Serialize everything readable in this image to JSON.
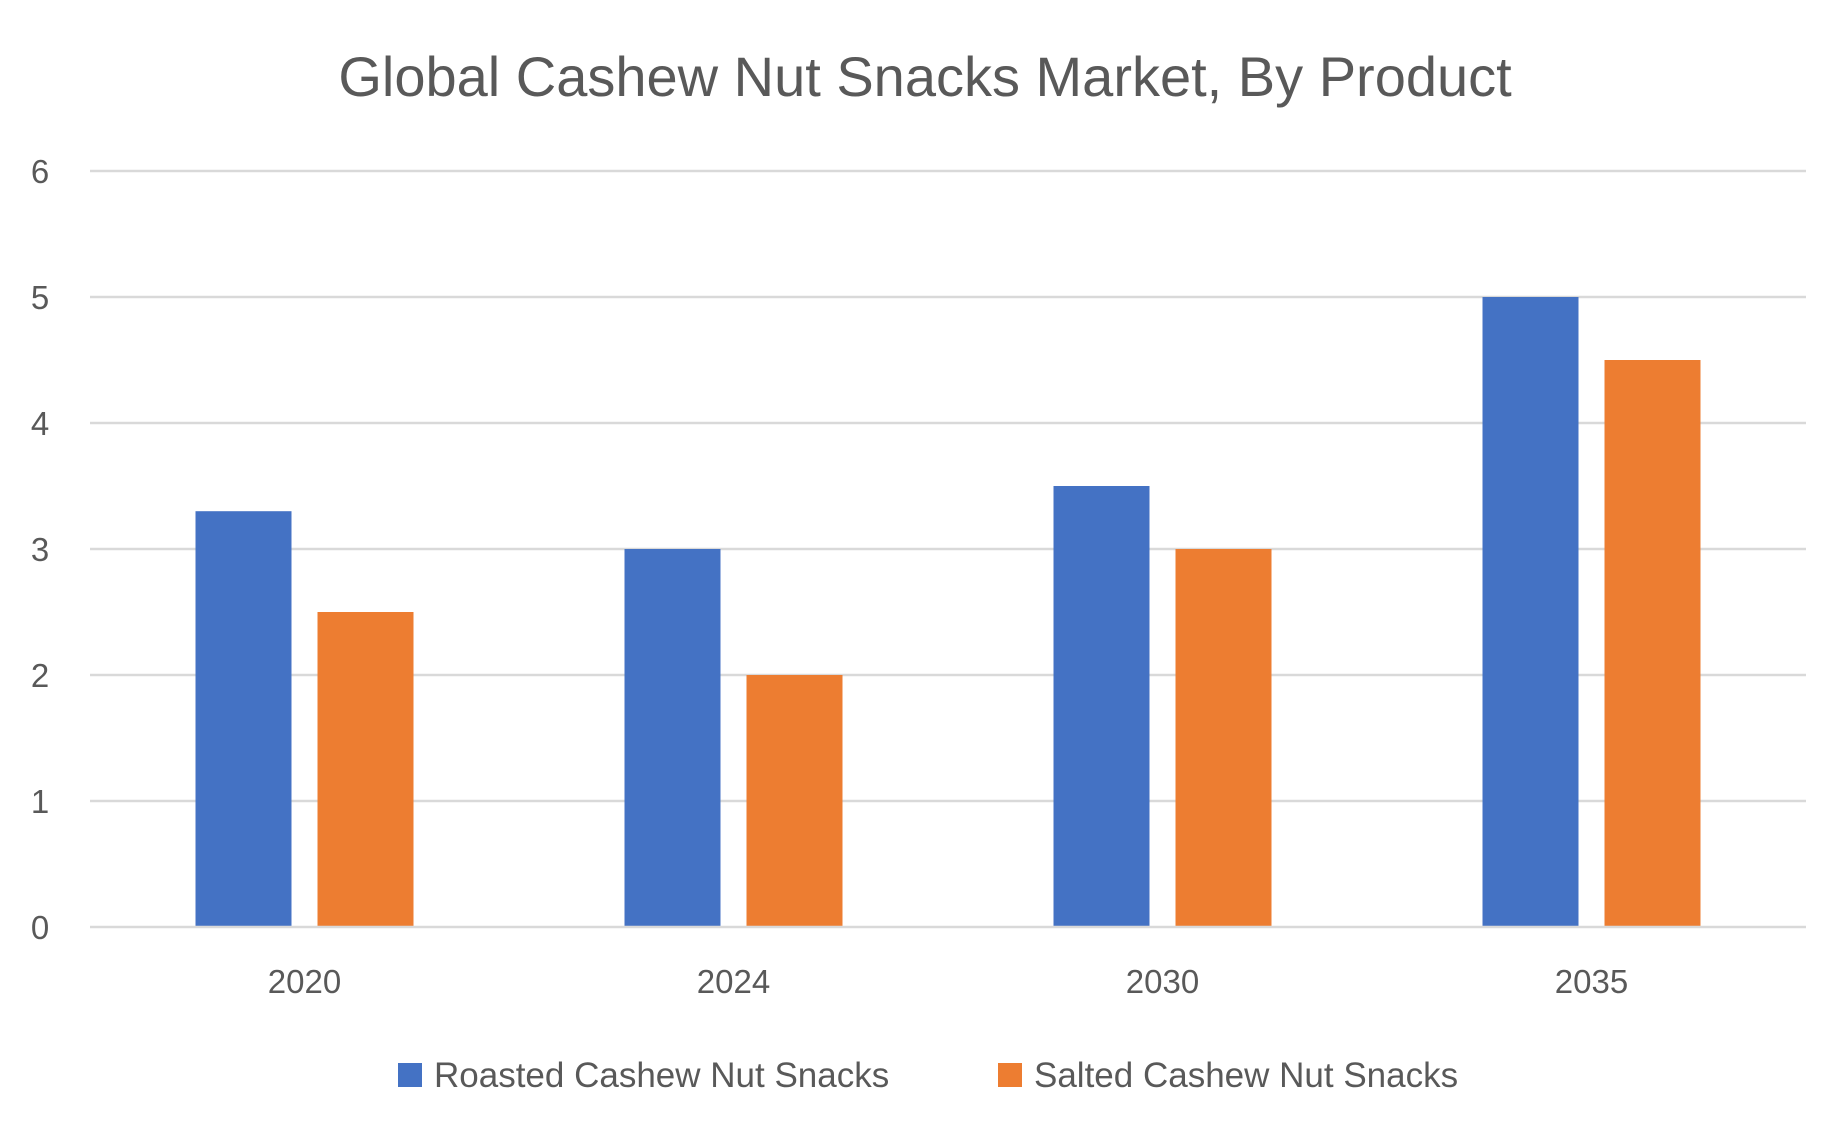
{
  "chart_data": {
    "type": "bar",
    "title": "Global Cashew Nut Snacks Market, By Product",
    "xlabel": "",
    "ylabel": "",
    "categories": [
      "2020",
      "2024",
      "2030",
      "2035"
    ],
    "series": [
      {
        "name": "Roasted Cashew Nut Snacks",
        "color": "#4472c4",
        "values": [
          3.3,
          3.0,
          3.5,
          5.0
        ]
      },
      {
        "name": "Salted Cashew Nut Snacks",
        "color": "#ed7d31",
        "values": [
          2.5,
          2.0,
          3.0,
          4.5
        ]
      }
    ],
    "ylim": [
      0,
      6
    ],
    "yticks": [
      "0",
      "1",
      "2",
      "3",
      "4",
      "5",
      "6"
    ],
    "grid": true,
    "legend_position": "bottom"
  }
}
